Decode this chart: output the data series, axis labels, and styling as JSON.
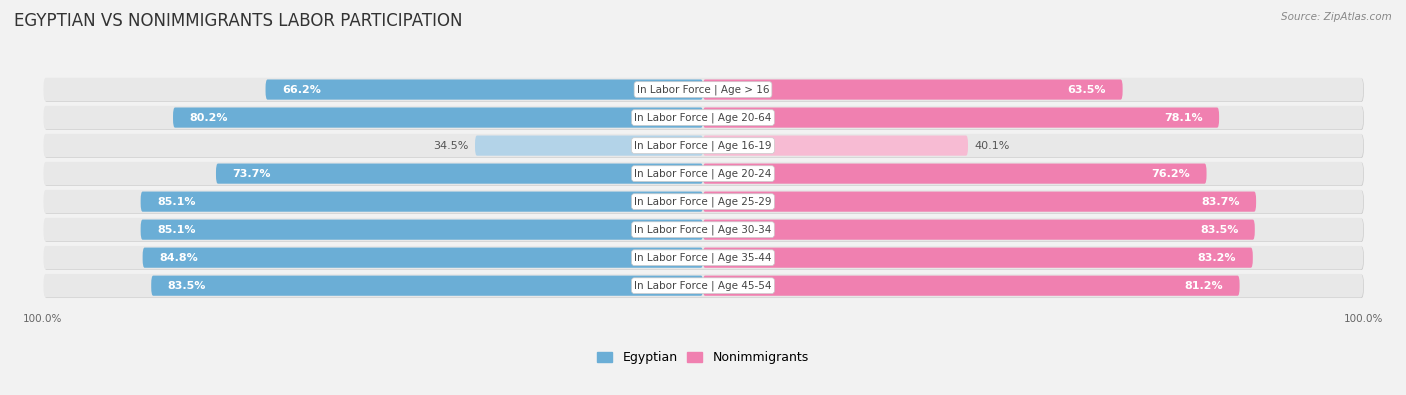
{
  "title": "EGYPTIAN VS NONIMMIGRANTS LABOR PARTICIPATION",
  "source": "Source: ZipAtlas.com",
  "categories": [
    "In Labor Force | Age > 16",
    "In Labor Force | Age 20-64",
    "In Labor Force | Age 16-19",
    "In Labor Force | Age 20-24",
    "In Labor Force | Age 25-29",
    "In Labor Force | Age 30-34",
    "In Labor Force | Age 35-44",
    "In Labor Force | Age 45-54"
  ],
  "egyptian_values": [
    66.2,
    80.2,
    34.5,
    73.7,
    85.1,
    85.1,
    84.8,
    83.5
  ],
  "nonimmigrant_values": [
    63.5,
    78.1,
    40.1,
    76.2,
    83.7,
    83.5,
    83.2,
    81.2
  ],
  "egyptian_color": "#6baed6",
  "egyptian_color_light": "#b3d3e8",
  "nonimmigrant_color": "#f080b0",
  "nonimmigrant_color_light": "#f7bbd3",
  "row_bg_color": "#e8e8e8",
  "row_shadow_color": "#cccccc",
  "bg_color": "#f2f2f2",
  "title_fontsize": 12,
  "label_fontsize": 7.5,
  "value_fontsize": 8,
  "legend_fontsize": 9,
  "axis_label": "100.0%",
  "max_value": 100.0,
  "center_label_bg": "#ffffff",
  "center_label_color": "#444444"
}
